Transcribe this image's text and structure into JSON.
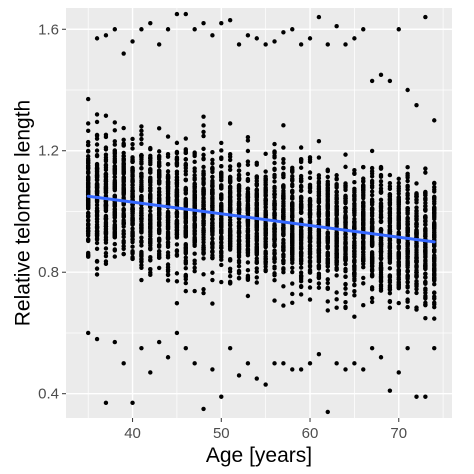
{
  "chart_data": {
    "type": "scatter",
    "title": "",
    "xlabel": "Age [years]",
    "ylabel": "Relative telomere length",
    "xlim": [
      32.5,
      76
    ],
    "ylim": [
      0.32,
      1.67
    ],
    "x_ticks": [
      40,
      50,
      60,
      70
    ],
    "y_ticks": [
      0.4,
      0.8,
      1.2,
      1.6
    ],
    "x_tick_labels": [
      "40",
      "50",
      "60",
      "70"
    ],
    "y_tick_labels": [
      "0.4",
      "0.8",
      "1.2",
      "1.6"
    ],
    "grid": true,
    "legend": "none",
    "colors": {
      "panel_background": "#ebebeb",
      "grid": "#ffffff",
      "points": "#000000",
      "trend_line": "#3366ff"
    },
    "points": {
      "x_range": [
        35,
        74
      ],
      "x_step": 1,
      "per_age_y_ranges": [
        {
          "x": 35,
          "y": [
            0.6,
            1.37
          ]
        },
        {
          "x": 36,
          "y": [
            0.58,
            1.57
          ]
        },
        {
          "x": 37,
          "y": [
            0.37,
            1.58
          ]
        },
        {
          "x": 38,
          "y": [
            0.57,
            1.6
          ]
        },
        {
          "x": 39,
          "y": [
            0.5,
            1.52
          ]
        },
        {
          "x": 40,
          "y": [
            0.37,
            1.56
          ]
        },
        {
          "x": 41,
          "y": [
            0.55,
            1.6
          ]
        },
        {
          "x": 42,
          "y": [
            0.47,
            1.62
          ]
        },
        {
          "x": 43,
          "y": [
            0.57,
            1.55
          ]
        },
        {
          "x": 44,
          "y": [
            0.52,
            1.6
          ]
        },
        {
          "x": 45,
          "y": [
            0.6,
            1.65
          ]
        },
        {
          "x": 46,
          "y": [
            0.55,
            1.65
          ]
        },
        {
          "x": 47,
          "y": [
            0.5,
            1.6
          ]
        },
        {
          "x": 48,
          "y": [
            0.35,
            1.62
          ]
        },
        {
          "x": 49,
          "y": [
            0.48,
            1.58
          ]
        },
        {
          "x": 50,
          "y": [
            0.39,
            1.62
          ]
        },
        {
          "x": 51,
          "y": [
            0.55,
            1.63
          ]
        },
        {
          "x": 52,
          "y": [
            0.46,
            1.55
          ]
        },
        {
          "x": 53,
          "y": [
            0.5,
            1.58
          ]
        },
        {
          "x": 54,
          "y": [
            0.45,
            1.57
          ]
        },
        {
          "x": 55,
          "y": [
            0.43,
            1.55
          ]
        },
        {
          "x": 56,
          "y": [
            0.5,
            1.56
          ]
        },
        {
          "x": 57,
          "y": [
            0.5,
            1.59
          ]
        },
        {
          "x": 58,
          "y": [
            0.48,
            1.6
          ]
        },
        {
          "x": 59,
          "y": [
            0.48,
            1.55
          ]
        },
        {
          "x": 60,
          "y": [
            0.5,
            1.57
          ]
        },
        {
          "x": 61,
          "y": [
            0.53,
            1.64
          ]
        },
        {
          "x": 62,
          "y": [
            0.34,
            1.55
          ]
        },
        {
          "x": 63,
          "y": [
            0.5,
            1.61
          ]
        },
        {
          "x": 64,
          "y": [
            0.48,
            1.55
          ]
        },
        {
          "x": 65,
          "y": [
            0.5,
            1.57
          ]
        },
        {
          "x": 66,
          "y": [
            0.48,
            1.6
          ]
        },
        {
          "x": 67,
          "y": [
            0.55,
            1.43
          ]
        },
        {
          "x": 68,
          "y": [
            0.52,
            1.45
          ]
        },
        {
          "x": 69,
          "y": [
            0.41,
            1.43
          ]
        },
        {
          "x": 70,
          "y": [
            0.47,
            1.6
          ]
        },
        {
          "x": 71,
          "y": [
            0.55,
            1.4
          ]
        },
        {
          "x": 72,
          "y": [
            0.39,
            1.35
          ]
        },
        {
          "x": 73,
          "y": [
            0.39,
            1.64
          ]
        },
        {
          "x": 74,
          "y": [
            0.55,
            1.3
          ]
        }
      ]
    },
    "trend_line": {
      "x": [
        35,
        74
      ],
      "y": [
        1.05,
        0.9
      ]
    }
  }
}
